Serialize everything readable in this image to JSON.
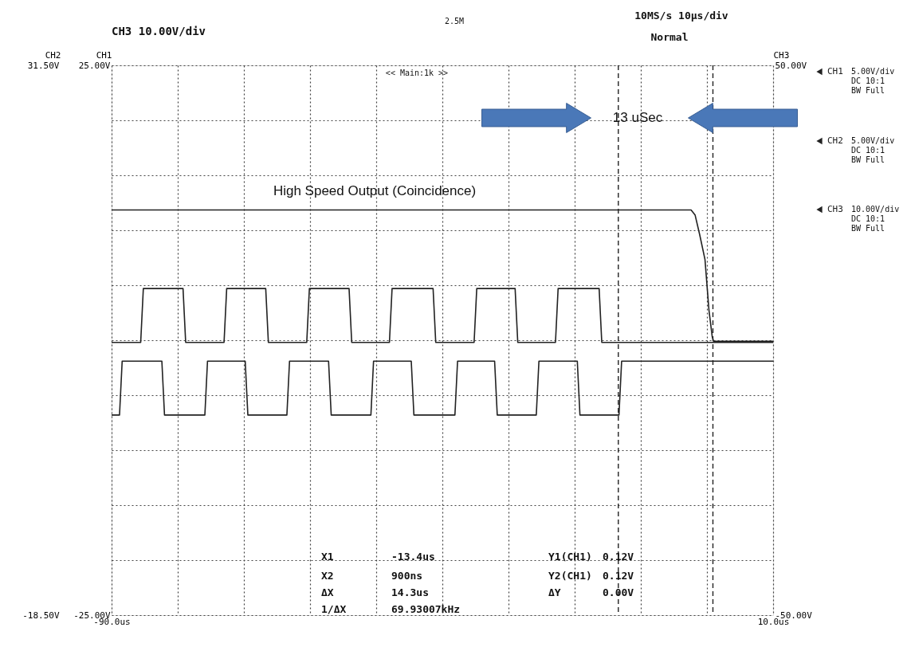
{
  "chart_data": {
    "type": "line",
    "annotations": [
      "CH3   10.00V/div",
      "2.5M",
      "10MS/s   10µs/div",
      "Normal",
      "<< Main:1k >>",
      "13 uSec",
      "High Speed Output (Coincidence)",
      "5.00V/div",
      "DC  10:1",
      "BW Full",
      "5.00V/div",
      "DC  10:1",
      "BW Full",
      "10.00V/div",
      "DC  10:1",
      "BW Full",
      "X1",
      "-13.4us",
      "Y1(CH1)",
      "0.12V",
      "X2",
      "900ns",
      "Y2(CH1)",
      "0.12V",
      "ΔX",
      "14.3us",
      "ΔY",
      "0.00V",
      "1/ΔX",
      "69.93007kHz"
    ],
    "xlim": [
      -90,
      10
    ],
    "xticks": [
      {
        "value": -90,
        "label": "-90.0us"
      },
      {
        "value": -80,
        "label": null
      },
      {
        "value": -70,
        "label": null
      },
      {
        "value": -60,
        "label": null
      },
      {
        "value": -50,
        "label": null
      },
      {
        "value": -40,
        "label": null
      },
      {
        "value": -30,
        "label": null
      },
      {
        "value": -20,
        "label": null
      },
      {
        "value": -10,
        "label": null
      },
      {
        "value": 0,
        "label": null
      },
      {
        "value": 10,
        "label": "10.0us"
      }
    ],
    "ylim": [
      -25,
      25
    ],
    "yticks": [
      {
        "value": -25,
        "label": "-25.00V"
      },
      {
        "value": -20,
        "label": null
      },
      {
        "value": -15,
        "label": null
      },
      {
        "value": -10,
        "label": null
      },
      {
        "value": -5,
        "label": null
      },
      {
        "value": 0,
        "label": null
      },
      {
        "value": 5,
        "label": null
      },
      {
        "value": 10,
        "label": null
      },
      {
        "value": 15,
        "label": null
      },
      {
        "value": 20,
        "label": null
      },
      {
        "value": 25,
        "label": "25.00V"
      }
    ],
    "y2lim": [
      -18.5,
      31.5
    ],
    "y2ticks": [
      {
        "value": -18.5,
        "label": "-18.50V"
      },
      {
        "value": 31.5,
        "label": "31.50V"
      }
    ],
    "y3lim": [
      -50,
      50
    ],
    "y3ticks": [
      {
        "value": -50,
        "label": "-50.00V"
      },
      {
        "value": 50,
        "label": "50.00V"
      }
    ],
    "grid": true,
    "legend": "top right",
    "marker": "none",
    "line_style": "solid",
    "ref_lines": [
      {
        "axis": "x",
        "value": -13.4,
        "line_style": "dashed"
      },
      {
        "axis": "x",
        "value": 0.9,
        "line_style": "dashed"
      }
    ],
    "series": [
      {
        "name": "CH1",
        "color": "#222222",
        "x": [
          -90,
          -85.6,
          -85.2,
          -79.2,
          -78.8,
          -73.0,
          -72.6,
          -66.7,
          -66.3,
          -60.5,
          -60.1,
          -54.1,
          -53.7,
          -48.0,
          -47.6,
          -41.4,
          -41.0,
          -35.2,
          -34.8,
          -29.0,
          -28.6,
          -22.9,
          -22.5,
          -16.3,
          -15.9,
          10
        ],
        "values": [
          -0.2,
          -0.2,
          4.7,
          4.7,
          -0.2,
          -0.2,
          4.7,
          4.7,
          -0.2,
          -0.2,
          4.7,
          4.7,
          -0.2,
          -0.2,
          4.7,
          4.7,
          -0.2,
          -0.2,
          4.7,
          4.7,
          -0.2,
          -0.2,
          4.7,
          4.7,
          -0.2,
          -0.2
        ]
      },
      {
        "name": "CH2",
        "color": "#222222",
        "axis": "y2",
        "x": [
          -90,
          -88.8,
          -88.4,
          -82.4,
          -82.0,
          -75.9,
          -75.5,
          -69.8,
          -69.4,
          -63.5,
          -63.1,
          -57.2,
          -56.8,
          -50.8,
          -50.4,
          -44.7,
          -44.3,
          -38.1,
          -37.7,
          -32.1,
          -31.7,
          -25.8,
          -25.4,
          -19.6,
          -19.2,
          -13.3,
          -12.9,
          10
        ],
        "values": [
          -0.3,
          -0.3,
          4.6,
          4.6,
          -0.3,
          -0.3,
          4.6,
          4.6,
          -0.3,
          -0.3,
          4.6,
          4.6,
          -0.3,
          -0.3,
          4.6,
          4.6,
          -0.3,
          -0.3,
          4.6,
          4.6,
          -0.3,
          -0.3,
          4.6,
          4.6,
          -0.3,
          -0.3,
          4.6,
          4.6
        ]
      },
      {
        "name": "CH3",
        "color": "#222222",
        "axis": "y3",
        "x": [
          -90,
          -2.4,
          -1.8,
          -1.1,
          -0.3,
          0.3,
          0.8,
          1.0,
          10
        ],
        "values": [
          23.7,
          23.7,
          22.8,
          19.2,
          14.7,
          5.5,
          0.6,
          -0.2,
          -0.2
        ]
      }
    ]
  }
}
